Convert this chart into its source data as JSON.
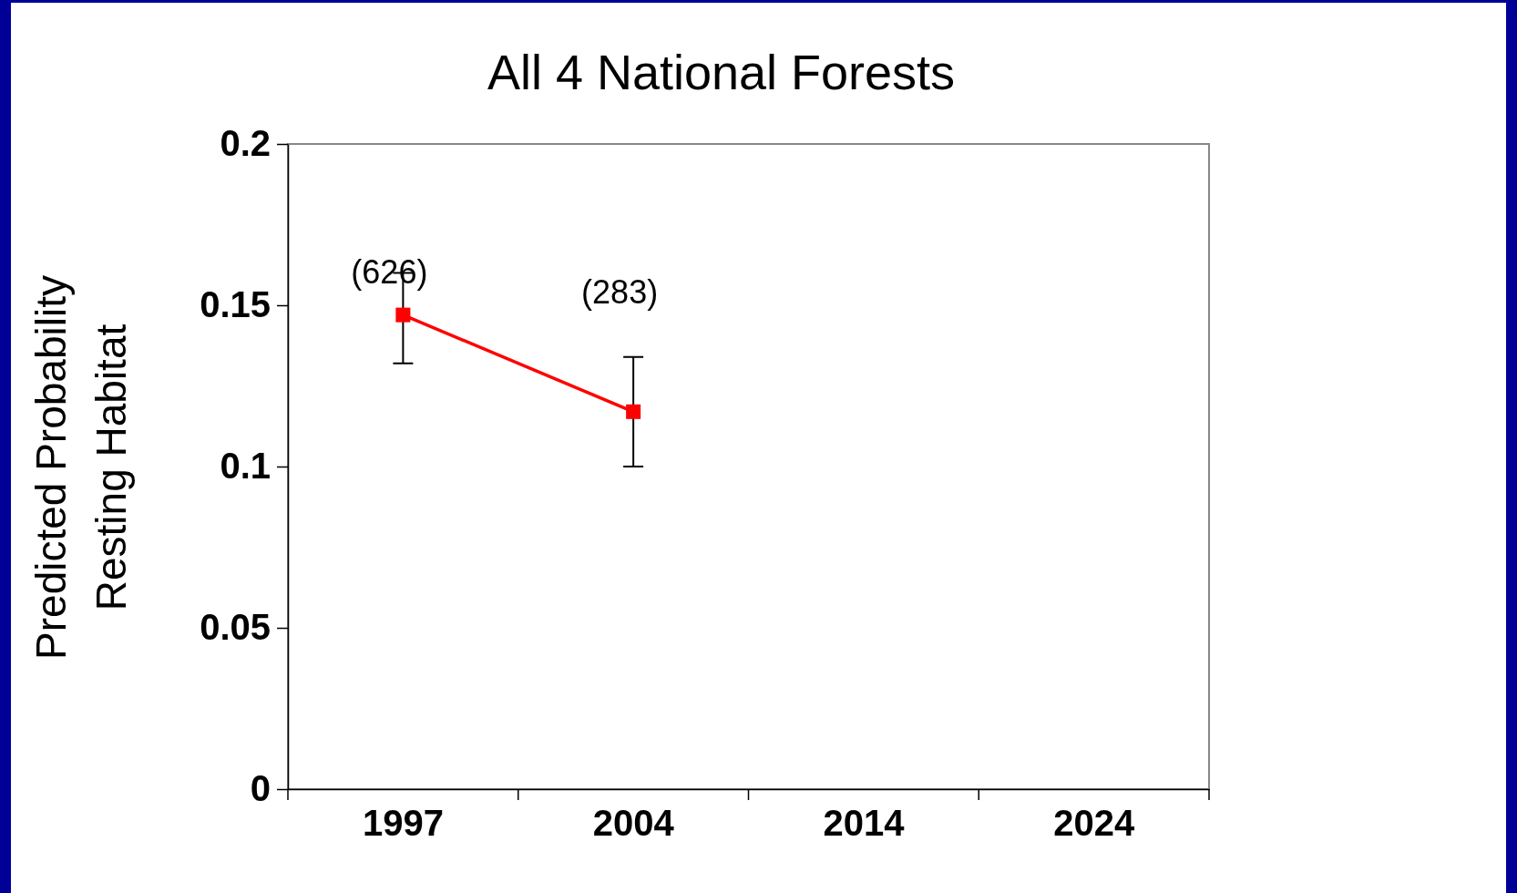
{
  "chart_data": {
    "type": "line",
    "title": "All 4 National Forests",
    "ylabel": "Predicted Probability\nResting Habitat",
    "categories": [
      "1997",
      "2004",
      "2014",
      "2024"
    ],
    "series": [
      {
        "color": "#ff0000",
        "values": [
          0.147,
          0.117,
          null,
          null
        ],
        "errors": [
          [
            0.132,
            0.16
          ],
          [
            0.1,
            0.134
          ],
          null,
          null
        ]
      }
    ],
    "ylim": [
      0,
      0.2
    ],
    "yticks": [
      0,
      0.05,
      0.1,
      0.15,
      0.2
    ],
    "marker": "square",
    "line_style": "solid",
    "grid": false,
    "annotations": [
      "(626)",
      "(283)"
    ]
  }
}
